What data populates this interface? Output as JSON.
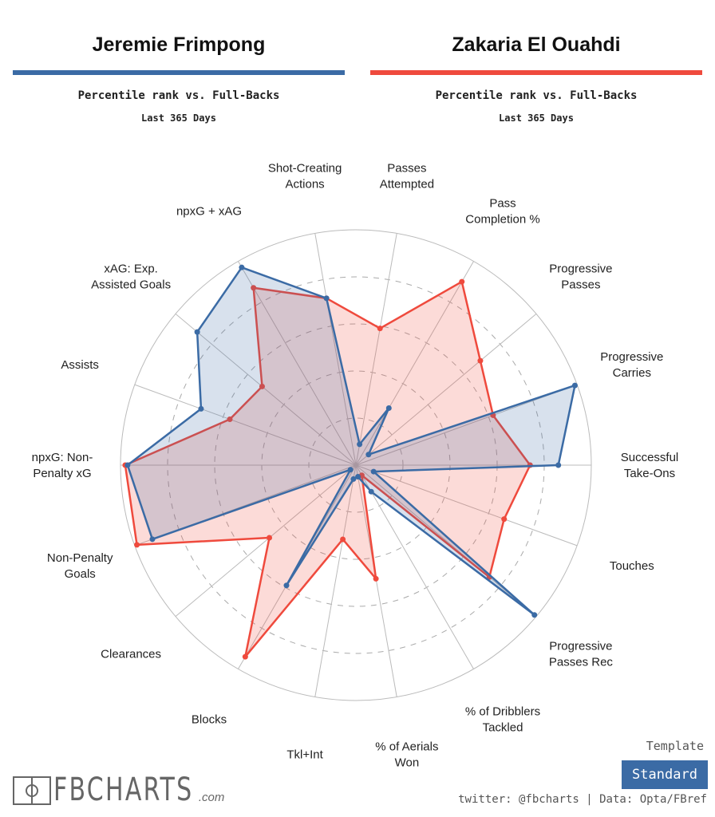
{
  "header": {
    "left": {
      "name": "Jeremie Frimpong",
      "subtitle": "Percentile rank vs. Full-Backs",
      "period": "Last 365 Days"
    },
    "right": {
      "name": "Zakaria El Ouahdi",
      "subtitle": "Percentile rank vs. Full-Backs",
      "period": "Last 365 Days"
    }
  },
  "footer": {
    "logo": "FBCHARTS",
    "logo_suffix": ".com",
    "template_label": "Template",
    "template_button": "Standard",
    "credit": "twitter: @fbcharts | Data: Opta/FBref"
  },
  "chart_data": {
    "type": "radar",
    "range": [
      0,
      100
    ],
    "gridlines": [
      20,
      40,
      60,
      80,
      100
    ],
    "axes": [
      [
        "Passes",
        "Attempted"
      ],
      [
        "Pass",
        "Completion %"
      ],
      [
        "Progressive",
        "Passes"
      ],
      [
        "Progressive",
        "Carries"
      ],
      [
        "Successful",
        "Take-Ons"
      ],
      [
        "Touches"
      ],
      [
        "Progressive",
        "Passes Rec"
      ],
      [
        "% of Dribblers",
        "Tackled"
      ],
      [
        "% of Aerials",
        "Won"
      ],
      [
        "Tkl+Int"
      ],
      [
        "Blocks"
      ],
      [
        "Clearances"
      ],
      [
        "Non-Penalty",
        "Goals"
      ],
      [
        "npxG: Non-",
        "Penalty xG"
      ],
      [
        "Assists"
      ],
      [
        "xAG: Exp.",
        "Assisted Goals"
      ],
      [
        "npxG + xAG"
      ],
      [
        "Shot-Creating",
        "Actions"
      ]
    ],
    "series": [
      {
        "name": "Zakaria El Ouahdi",
        "color": "#ef4a3d",
        "values": [
          59,
          90,
          69,
          62,
          74,
          67,
          74,
          5,
          49,
          32,
          94,
          48,
          99,
          98,
          57,
          52,
          87,
          72
        ]
      },
      {
        "name": "Jeremie Frimpong",
        "color": "#3b6ba5",
        "values": [
          9,
          28,
          7,
          99,
          86,
          8,
          99,
          13,
          5,
          6,
          59,
          3,
          92,
          97,
          70,
          88,
          97,
          72
        ]
      }
    ]
  }
}
